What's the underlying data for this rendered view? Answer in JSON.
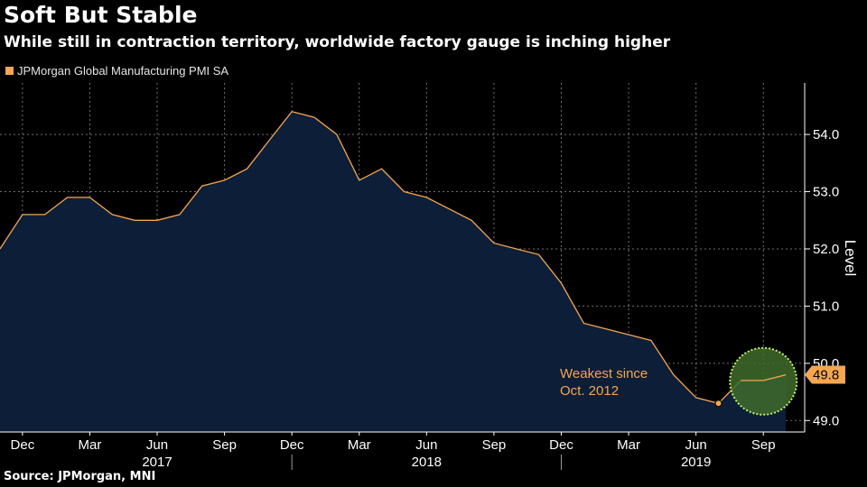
{
  "title": "Soft But Stable",
  "subtitle": "While still in contraction territory, worldwide factory gauge is inching higher",
  "source": "Source: JPMorgan, MNI",
  "colors": {
    "background": "#000000",
    "area_fill": "#0c1e38",
    "line": "#f5a650",
    "grid": "#6f6f6f",
    "highlight_fill": "#3f6b2c",
    "highlight_stroke": "#c7ee6c"
  },
  "chart_data": {
    "type": "area",
    "series": [
      {
        "name": "JPMorgan Global Manufacturing PMI SA",
        "x": [
          "2016-11",
          "2016-12",
          "2017-01",
          "2017-02",
          "2017-03",
          "2017-04",
          "2017-05",
          "2017-06",
          "2017-07",
          "2017-08",
          "2017-09",
          "2017-10",
          "2017-11",
          "2017-12",
          "2018-01",
          "2018-02",
          "2018-03",
          "2018-04",
          "2018-05",
          "2018-06",
          "2018-07",
          "2018-08",
          "2018-09",
          "2018-10",
          "2018-11",
          "2018-12",
          "2019-01",
          "2019-02",
          "2019-03",
          "2019-04",
          "2019-05",
          "2019-06",
          "2019-07",
          "2019-08",
          "2019-09",
          "2019-10"
        ],
        "values": [
          52.0,
          52.6,
          52.6,
          52.9,
          52.9,
          52.6,
          52.5,
          52.5,
          52.6,
          53.1,
          53.2,
          53.4,
          53.9,
          54.4,
          54.3,
          54.0,
          53.2,
          53.4,
          53.0,
          52.9,
          52.7,
          52.5,
          52.1,
          52.0,
          51.9,
          51.4,
          50.7,
          50.6,
          50.5,
          50.4,
          49.8,
          49.4,
          49.3,
          49.7,
          49.7,
          49.8
        ]
      }
    ],
    "last_value_label": "49.8",
    "xticks": [
      "Dec",
      "Mar",
      "Jun",
      "Sep",
      "Dec",
      "Mar",
      "Jun",
      "Sep",
      "Dec",
      "Mar",
      "Jun",
      "Sep"
    ],
    "xtick_dates": [
      "2016-12",
      "2017-03",
      "2017-06",
      "2017-09",
      "2017-12",
      "2018-03",
      "2018-06",
      "2018-09",
      "2018-12",
      "2019-03",
      "2019-06",
      "2019-09"
    ],
    "year_labels": [
      "2017",
      "2018",
      "2019"
    ],
    "year_label_dates": [
      "2017-06",
      "2018-06",
      "2019-06"
    ],
    "year_boundaries": [
      "2017-12",
      "2018-12"
    ],
    "yticks": [
      49.0,
      50.0,
      51.0,
      52.0,
      53.0,
      54.0
    ],
    "ylim": [
      48.8,
      54.9
    ],
    "ylabel": "Level",
    "xlabel": "",
    "grid": true,
    "legend_position": "top-left",
    "annotation": {
      "text_lines": [
        "Weakest since",
        "Oct. 2012"
      ],
      "point_date": "2019-07",
      "point_value": 49.3
    },
    "highlight_dates": [
      "2019-08",
      "2019-09",
      "2019-10"
    ]
  }
}
